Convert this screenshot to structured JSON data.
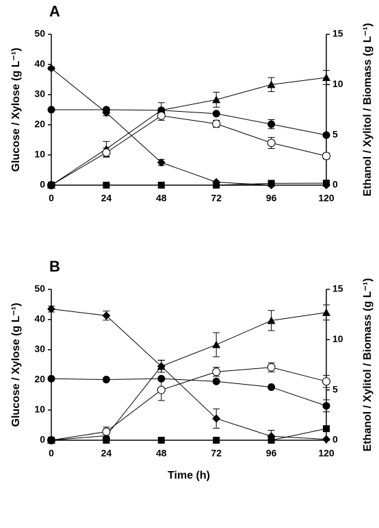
{
  "chart_data": [
    {
      "type": "line",
      "title": "A",
      "ylabel": "Glucose / Xylose (g L⁻¹)",
      "y2label": "Ethanol / Xylitol / Biomass (g L⁻¹)",
      "x": [
        0,
        24,
        48,
        72,
        96,
        120
      ],
      "xlim": [
        0,
        120
      ],
      "xticks": [
        0,
        24,
        48,
        72,
        96,
        120
      ],
      "ylim": [
        0,
        50
      ],
      "yticks": [
        0,
        10,
        20,
        30,
        40,
        50
      ],
      "y2lim": [
        0,
        15
      ],
      "y2ticks": [
        0,
        5,
        10,
        15
      ],
      "series": [
        {
          "marker": "diamond",
          "color": "#000000",
          "values": [
            38.7,
            24,
            7.5,
            1,
            0,
            0
          ],
          "errors": [
            0.5,
            1,
            1,
            null,
            null,
            null
          ]
        },
        {
          "marker": "circle",
          "color": "#000000",
          "values": [
            25,
            25,
            24.8,
            23.7,
            20.2,
            16.6
          ],
          "errors": [
            null,
            0.5,
            0.5,
            0.5,
            1.5,
            0.5
          ]
        },
        {
          "marker": "triangle",
          "color": "#000000",
          "axis": "y2",
          "values": [
            0,
            3.6,
            7.45,
            8.5,
            10,
            10.7
          ],
          "errors": [
            null,
            0.75,
            0.75,
            0.75,
            0.7,
            0.7
          ]
        },
        {
          "marker": "open-circle",
          "color": "#000000",
          "axis": "y2",
          "values": [
            0,
            3.24,
            6.9,
            6.1,
            4.2,
            2.9
          ],
          "errors": [
            null,
            0.45,
            0.45,
            0.35,
            0.55,
            0.3
          ]
        },
        {
          "marker": "square",
          "color": "#000000",
          "axis": "y2",
          "values": [
            0,
            0,
            0,
            0,
            0.18,
            0.2
          ],
          "errors": [
            null,
            null,
            null,
            null,
            null,
            null
          ]
        }
      ]
    },
    {
      "type": "line",
      "title": "B",
      "xlabel": "Time (h)",
      "ylabel": "Glucose / Xylose (g L⁻¹)",
      "y2label": "Ethanol / Xylitol / Biomass (g L⁻¹)",
      "x": [
        0,
        24,
        48,
        72,
        96,
        120
      ],
      "xlim": [
        0,
        120
      ],
      "xticks": [
        0,
        24,
        48,
        72,
        96,
        120
      ],
      "ylim": [
        0,
        50
      ],
      "yticks": [
        0,
        10,
        20,
        30,
        40,
        50
      ],
      "y2lim": [
        0,
        15
      ],
      "y2ticks": [
        0,
        5,
        10,
        15
      ],
      "series": [
        {
          "marker": "diamond",
          "color": "#000000",
          "values": [
            43.5,
            41.3,
            24.5,
            7.2,
            1.3,
            0.3
          ],
          "errors": [
            1,
            1.5,
            2,
            3.2,
            2,
            null
          ]
        },
        {
          "marker": "circle",
          "color": "#000000",
          "values": [
            20.4,
            20.1,
            20.4,
            19.5,
            17.6,
            11.4
          ],
          "errors": [
            null,
            null,
            0.5,
            null,
            null,
            2
          ]
        },
        {
          "marker": "triangle",
          "color": "#000000",
          "axis": "y2",
          "values": [
            0,
            0.45,
            7.35,
            9.5,
            11.9,
            12.7
          ],
          "errors": [
            null,
            0.15,
            0.6,
            1.2,
            1,
            0.75
          ]
        },
        {
          "marker": "open-circle",
          "color": "#000000",
          "axis": "y2",
          "values": [
            0,
            0.85,
            5,
            6.8,
            7.25,
            5.85
          ],
          "errors": [
            null,
            0.45,
            1.05,
            0.45,
            0.45,
            0.6
          ]
        },
        {
          "marker": "square",
          "color": "#000000",
          "axis": "y2",
          "values": [
            0,
            0,
            0,
            0,
            0,
            1.15
          ],
          "errors": [
            null,
            null,
            null,
            null,
            null,
            null
          ]
        }
      ]
    }
  ]
}
